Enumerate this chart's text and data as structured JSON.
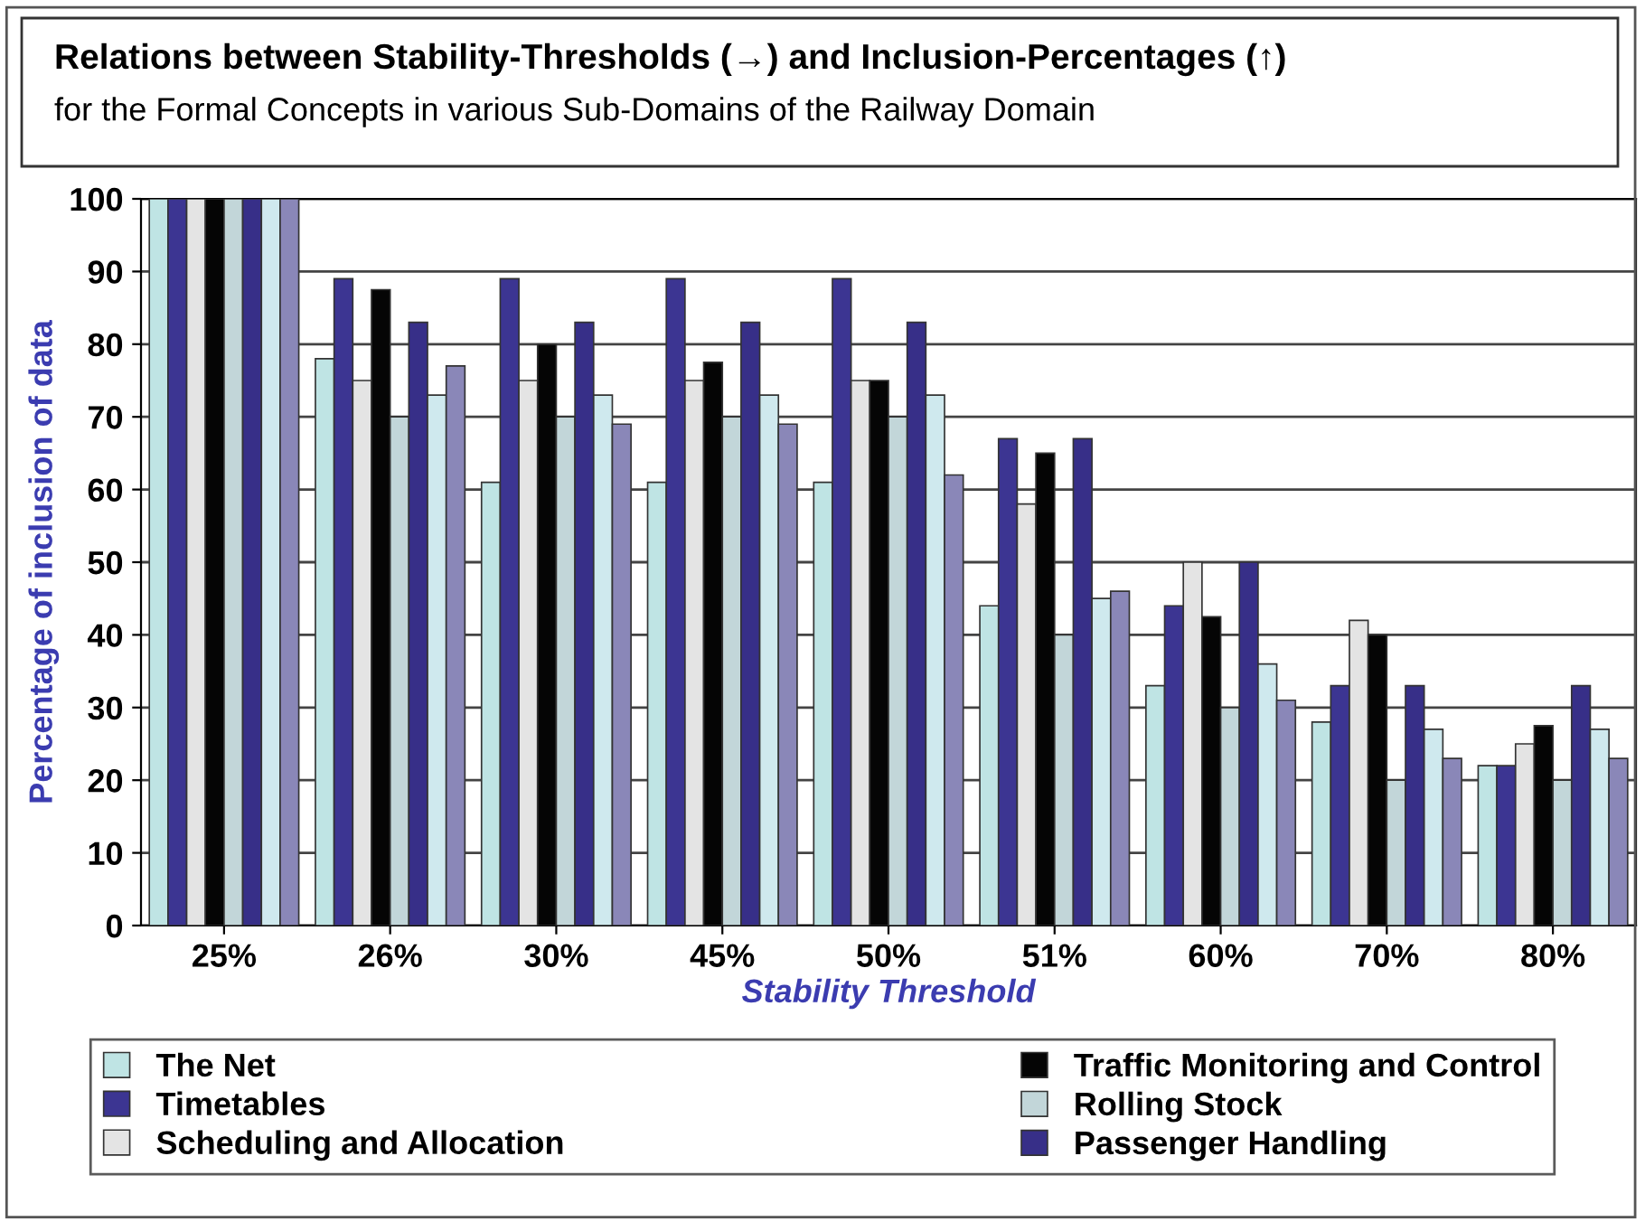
{
  "chart_data": {
    "type": "bar",
    "title": "Relations between Stability-Thresholds (→) and Inclusion-Percentages (↑)",
    "subtitle": "for the Formal Concepts in various Sub-Domains of the Railway Domain",
    "xlabel": "Stability Threshold",
    "ylabel": "Percentage of inclusion of data",
    "categories": [
      "25%",
      "26%",
      "30%",
      "45%",
      "50%",
      "51%",
      "60%",
      "70%",
      "80%"
    ],
    "series": [
      {
        "name": "The Net",
        "color": "#bfe4e4",
        "values": [
          100,
          78,
          61,
          61,
          61,
          44,
          33,
          28,
          22
        ]
      },
      {
        "name": "Timetables",
        "color": "#3c3592",
        "values": [
          100,
          89,
          89,
          89,
          89,
          67,
          44,
          33,
          22
        ]
      },
      {
        "name": "Scheduling and Allocation",
        "color": "#e4e4e4",
        "values": [
          100,
          75,
          75,
          75,
          75,
          58,
          50,
          42,
          25
        ]
      },
      {
        "name": "Traffic Monitoring and Control",
        "color": "#050505",
        "values": [
          100,
          87.5,
          80,
          77.5,
          75,
          65,
          42.5,
          40,
          27.5
        ]
      },
      {
        "name": "Rolling Stock",
        "color": "#c2d6d9",
        "values": [
          100,
          70,
          70,
          70,
          70,
          40,
          30,
          20,
          20
        ]
      },
      {
        "name": "Passenger Handling",
        "color": "#372f88",
        "values": [
          100,
          83,
          83,
          83,
          83,
          67,
          50,
          33,
          33
        ]
      },
      {
        "color": "#cfe9ee",
        "values": [
          100,
          73,
          73,
          73,
          73,
          45,
          36,
          27,
          27
        ]
      },
      {
        "color": "#8a87b8",
        "values": [
          100,
          77,
          69,
          69,
          62,
          46,
          31,
          23,
          23
        ]
      }
    ],
    "ylim": [
      0,
      100
    ],
    "yticks": [
      0,
      10,
      20,
      30,
      40,
      50,
      60,
      70,
      80,
      90,
      100
    ],
    "grid": "y",
    "legend": "bottom"
  }
}
